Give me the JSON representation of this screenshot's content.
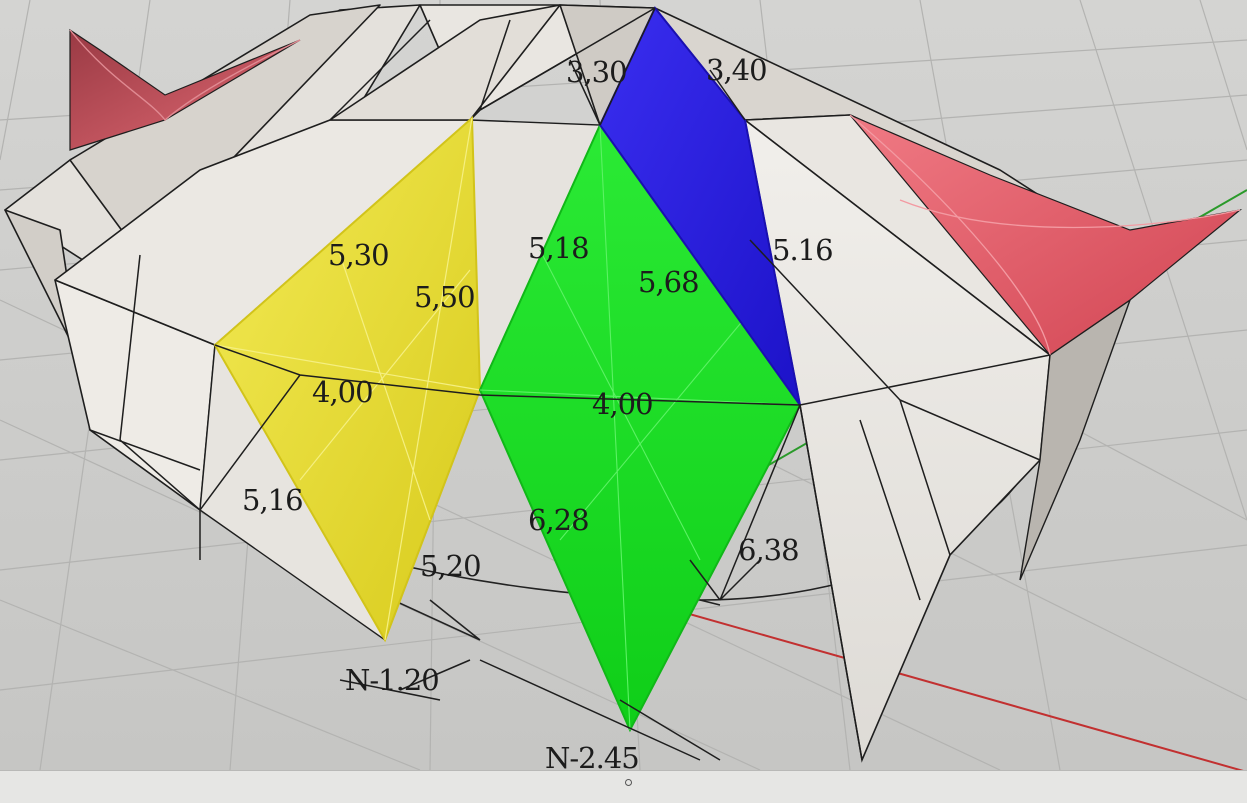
{
  "viewport": {
    "dimension_labels": {
      "l_330": "3,30",
      "l_340": "3,40",
      "l_530": "5,30",
      "l_550": "5,50",
      "l_518": "5,18",
      "l_568": "5,68",
      "l_516r": "5.16",
      "l_400a": "4,00",
      "l_400b": "4,00",
      "l_516l": "5,16",
      "l_628": "6,28",
      "l_520": "5,20",
      "l_638": "6,38",
      "l_n120": "N-1.20",
      "l_n245": "N-2.45"
    },
    "colors": {
      "background": "#cfcfcd",
      "grid": "#b8b8b6",
      "surface": "#e9e6e1",
      "surface_shade": "#c8c4be",
      "edge": "#1e1e1e",
      "yellow_panel": "#ece23a",
      "green_panel": "#16dc1f",
      "blue_panel": "#2a1ee0",
      "red_panel": "#e05a66",
      "axis_x": "#c23030",
      "axis_y": "#2a9a2a"
    }
  },
  "statusbar": {
    "indicator": "status-dot"
  }
}
